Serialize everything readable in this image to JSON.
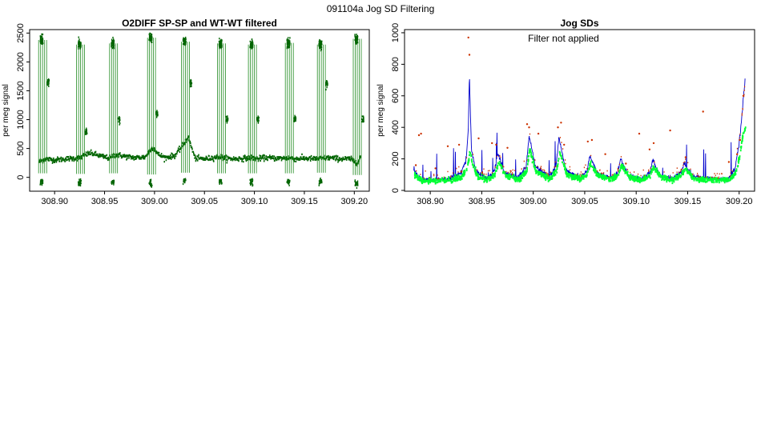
{
  "page": {
    "title": "091104a   Jog SD Filtering"
  },
  "chart_data": [
    {
      "type": "scatter",
      "title": "O2DIFF SP-SP and WT-WT filtered",
      "xlabel": "",
      "ylabel": "per meg signal",
      "xlim": [
        308.875,
        309.215
      ],
      "ylim": [
        -240,
        2560
      ],
      "xticks": [
        308.9,
        308.95,
        309.0,
        309.05,
        309.1,
        309.15,
        309.2
      ],
      "xtick_labels": [
        "308.90",
        "308.95",
        "309.00",
        "309.05",
        "309.10",
        "309.15",
        "309.20"
      ],
      "yticks": [
        0,
        500,
        1000,
        1500,
        2000,
        2500
      ],
      "ytick_labels": [
        "0",
        "500",
        "1000",
        "1500",
        "2000",
        "2500"
      ],
      "grid": false,
      "colors": {
        "points": "#006400",
        "lines": "#228b22"
      },
      "baseline_trace": {
        "x": [
          308.884,
          308.89,
          308.9,
          308.91,
          308.92,
          308.925,
          308.93,
          308.935,
          308.94,
          308.945,
          308.95,
          308.955,
          308.958,
          308.962,
          308.97,
          308.98,
          308.99,
          308.995,
          308.998,
          309.003,
          309.01,
          309.02,
          309.028,
          309.033,
          309.04,
          309.05,
          309.058,
          309.065,
          309.07,
          309.08,
          309.09,
          309.097,
          309.103,
          309.11,
          309.12,
          309.128,
          309.135,
          309.14,
          309.15,
          309.16,
          309.168,
          309.175,
          309.185,
          309.195,
          309.203,
          309.206
        ],
        "y": [
          270,
          320,
          300,
          320,
          330,
          340,
          390,
          420,
          400,
          370,
          350,
          330,
          380,
          390,
          360,
          340,
          350,
          470,
          520,
          400,
          340,
          380,
          560,
          700,
          330,
          320,
          340,
          360,
          330,
          320,
          330,
          340,
          320,
          340,
          330,
          330,
          340,
          320,
          330,
          320,
          330,
          340,
          320,
          320,
          250,
          380
        ]
      },
      "jog_cycles": [
        {
          "x": 308.887,
          "sp_level": 2380,
          "low_level": -80,
          "mid_level": 1650
        },
        {
          "x": 308.925,
          "sp_level": 2300,
          "low_level": -90,
          "mid_level": 780
        },
        {
          "x": 308.958,
          "sp_level": 2320,
          "low_level": -80,
          "mid_level": 1000
        },
        {
          "x": 308.996,
          "sp_level": 2420,
          "low_level": -100,
          "mid_level": 1100
        },
        {
          "x": 309.03,
          "sp_level": 2350,
          "low_level": -70,
          "mid_level": 1620
        },
        {
          "x": 309.066,
          "sp_level": 2320,
          "low_level": -80,
          "mid_level": 1000
        },
        {
          "x": 309.097,
          "sp_level": 2300,
          "low_level": -80,
          "mid_level": 1000
        },
        {
          "x": 309.134,
          "sp_level": 2330,
          "low_level": -80,
          "mid_level": 1000
        },
        {
          "x": 309.166,
          "sp_level": 2300,
          "low_level": -70,
          "mid_level": 1620
        },
        {
          "x": 309.202,
          "sp_level": 2400,
          "low_level": -110,
          "mid_level": 1000
        }
      ]
    },
    {
      "type": "line",
      "title": "Jog SDs",
      "annotation": "Filter not applied",
      "xlabel": "",
      "ylabel": "per meg signal",
      "xlim": [
        308.875,
        309.215
      ],
      "ylim": [
        -5,
        1020
      ],
      "xticks": [
        308.9,
        308.95,
        309.0,
        309.05,
        309.1,
        309.15,
        309.2
      ],
      "xtick_labels": [
        "308.90",
        "308.95",
        "309.00",
        "309.05",
        "309.10",
        "309.15",
        "309.20"
      ],
      "yticks": [
        0,
        200,
        400,
        600,
        800,
        1000
      ],
      "ytick_labels": [
        "0",
        "200",
        "400",
        "600",
        "800",
        "1000"
      ],
      "grid": false,
      "colors": {
        "sd_line": "#0000cc",
        "filtered": "#00ff33",
        "outliers": "#cc3300"
      },
      "sd_trace": {
        "x": [
          308.884,
          308.888,
          308.892,
          308.9,
          308.91,
          308.92,
          308.93,
          308.935,
          308.937,
          308.938,
          308.94,
          308.945,
          308.955,
          308.962,
          308.966,
          308.972,
          308.985,
          308.993,
          308.996,
          309.002,
          309.015,
          309.022,
          309.025,
          309.032,
          309.045,
          309.052,
          309.055,
          309.062,
          309.075,
          309.082,
          309.085,
          309.092,
          309.105,
          309.113,
          309.116,
          309.123,
          309.135,
          309.143,
          309.147,
          309.155,
          309.165,
          309.172,
          309.18,
          309.19,
          309.196,
          309.2,
          309.203,
          309.206
        ],
        "y": [
          130,
          90,
          70,
          65,
          70,
          80,
          110,
          200,
          400,
          740,
          250,
          110,
          80,
          120,
          230,
          110,
          80,
          150,
          350,
          150,
          80,
          150,
          330,
          120,
          80,
          120,
          220,
          110,
          75,
          110,
          200,
          95,
          75,
          110,
          190,
          95,
          75,
          110,
          170,
          90,
          75,
          80,
          70,
          75,
          140,
          300,
          500,
          720
        ]
      },
      "filtered_trace": {
        "x": [
          308.884,
          308.888,
          308.892,
          308.9,
          308.91,
          308.92,
          308.93,
          308.935,
          308.937,
          308.938,
          308.94,
          308.945,
          308.955,
          308.962,
          308.966,
          308.972,
          308.985,
          308.993,
          308.996,
          309.002,
          309.015,
          309.022,
          309.025,
          309.032,
          309.045,
          309.052,
          309.055,
          309.062,
          309.075,
          309.082,
          309.085,
          309.092,
          309.105,
          309.113,
          309.116,
          309.123,
          309.135,
          309.143,
          309.147,
          309.155,
          309.165,
          309.172,
          309.18,
          309.19,
          309.196,
          309.2,
          309.203,
          309.206
        ],
        "y": [
          100,
          75,
          60,
          58,
          62,
          65,
          85,
          140,
          200,
          270,
          170,
          90,
          70,
          100,
          180,
          95,
          70,
          120,
          260,
          120,
          70,
          120,
          240,
          100,
          70,
          100,
          170,
          95,
          68,
          95,
          160,
          85,
          68,
          95,
          150,
          85,
          68,
          95,
          140,
          80,
          68,
          70,
          65,
          70,
          110,
          220,
          350,
          420
        ]
      },
      "outliers": {
        "x": [
          308.886,
          308.889,
          308.891,
          308.905,
          308.917,
          308.928,
          308.937,
          308.938,
          308.947,
          308.96,
          308.964,
          308.975,
          308.994,
          308.996,
          309.005,
          309.024,
          309.027,
          309.03,
          309.053,
          309.057,
          309.07,
          309.09,
          309.103,
          309.113,
          309.117,
          309.133,
          309.148,
          309.165,
          309.19,
          309.198,
          309.201,
          309.204
        ],
        "y": [
          160,
          350,
          360,
          140,
          280,
          290,
          970,
          860,
          330,
          300,
          290,
          270,
          420,
          400,
          360,
          400,
          430,
          290,
          310,
          320,
          230,
          170,
          360,
          260,
          300,
          380,
          210,
          500,
          180,
          230,
          320,
          600
        ]
      }
    }
  ]
}
